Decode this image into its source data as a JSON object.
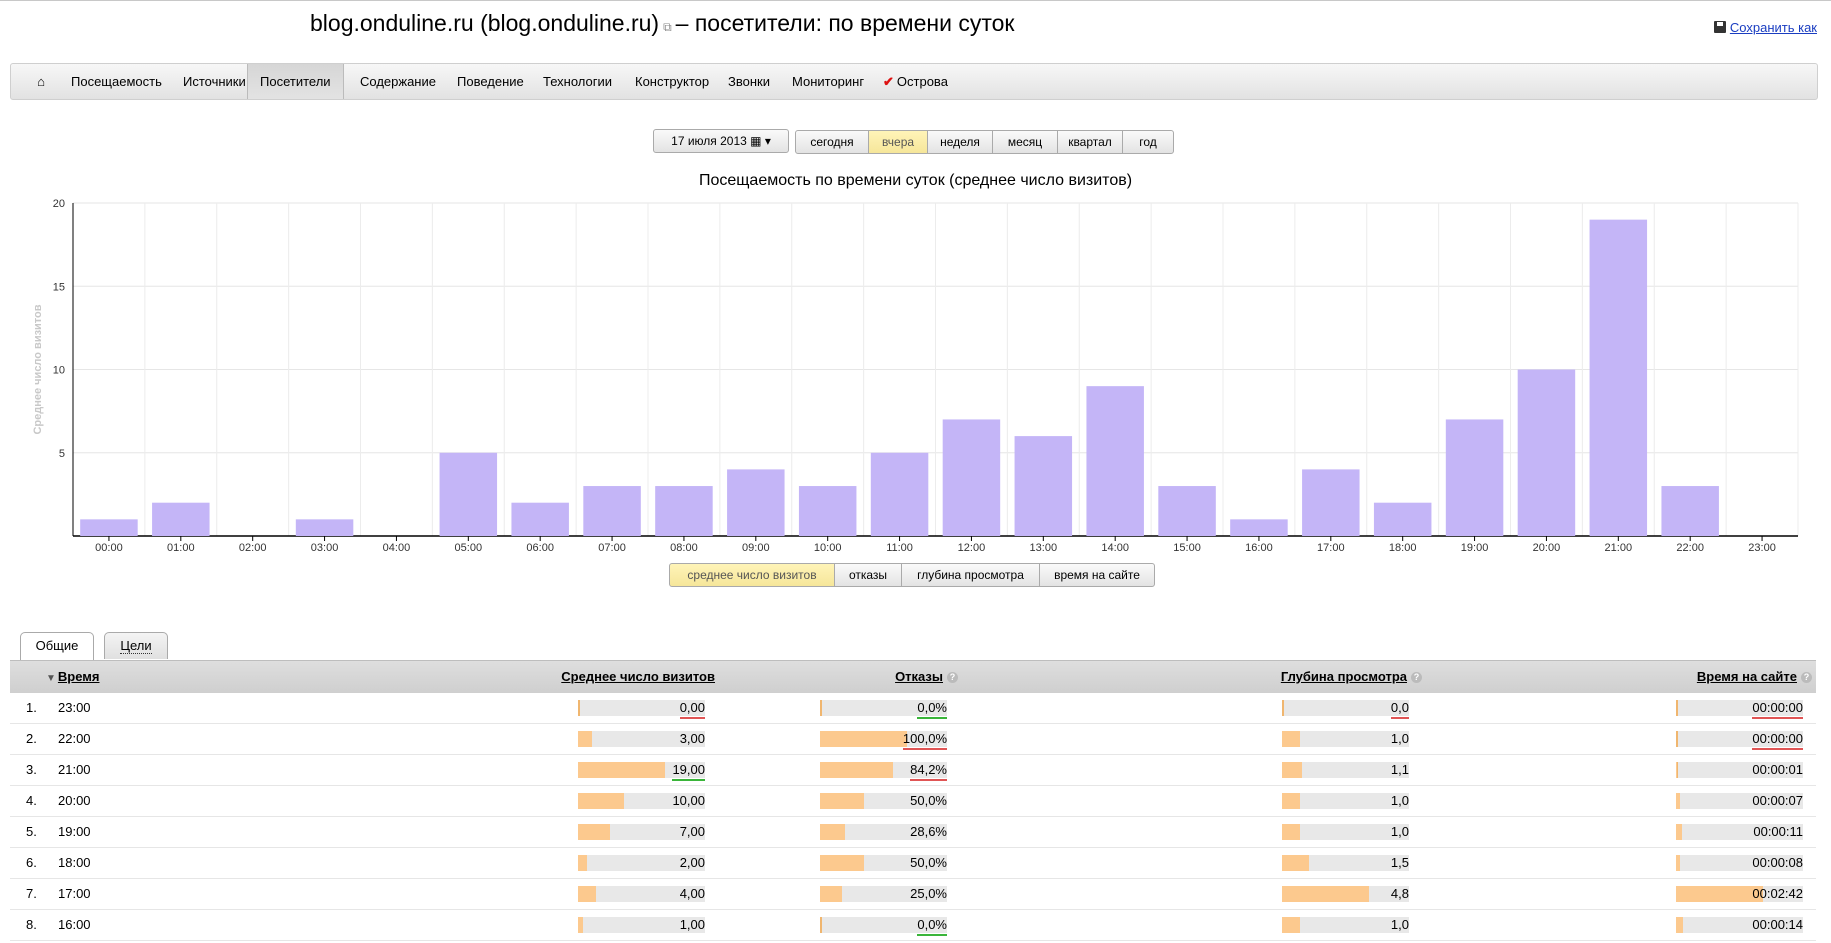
{
  "header": {
    "title_site": "blog.onduline.ru (blog.onduline.ru)",
    "title_rest": "– посетители: по времени суток",
    "save_label": "Сохранить как"
  },
  "menu": {
    "items": [
      {
        "label": "Посещаемость"
      },
      {
        "label": "Источники"
      },
      {
        "label": "Посетители",
        "active": true
      },
      {
        "label": "Содержание"
      },
      {
        "label": "Поведение"
      },
      {
        "label": "Технологии"
      },
      {
        "label": "Конструктор"
      },
      {
        "label": "Звонки"
      },
      {
        "label": "Мониторинг"
      },
      {
        "label": "Острова"
      }
    ]
  },
  "period": {
    "date": "17 июля 2013",
    "options": [
      "сегодня",
      "вчера",
      "неделя",
      "месяц",
      "квартал",
      "год"
    ],
    "selected": "вчера"
  },
  "metric_switch": {
    "options": [
      "среднее число визитов",
      "отказы",
      "глубина просмотра",
      "время на сайте"
    ],
    "selected": "среднее число визитов"
  },
  "chart_data": {
    "type": "bar",
    "title": "Посещаемость по времени суток (среднее число визитов)",
    "ylabel": "Среднее число визитов",
    "xlabel": "",
    "categories": [
      "00:00",
      "01:00",
      "02:00",
      "03:00",
      "04:00",
      "05:00",
      "06:00",
      "07:00",
      "08:00",
      "09:00",
      "10:00",
      "11:00",
      "12:00",
      "13:00",
      "14:00",
      "15:00",
      "16:00",
      "17:00",
      "18:00",
      "19:00",
      "20:00",
      "21:00",
      "22:00",
      "23:00"
    ],
    "values": [
      1,
      2,
      0,
      1,
      0,
      5,
      2,
      3,
      3,
      4,
      3,
      5,
      7,
      6,
      9,
      3,
      1,
      4,
      2,
      7,
      10,
      19,
      3,
      0
    ],
    "ylim": [
      0,
      20
    ],
    "yticks": [
      5,
      10,
      15,
      20
    ],
    "bar_color": "#c4b5f7",
    "grid": true
  },
  "tabs": [
    {
      "label": "Общие",
      "active": true
    },
    {
      "label": "Цели"
    }
  ],
  "table": {
    "headers": {
      "time": "Время",
      "visits": "Среднее число визитов",
      "bounce": "Отказы",
      "depth": "Глубина просмотра",
      "duration": "Время на сайте"
    },
    "rows": [
      {
        "n": "1.",
        "time": "23:00",
        "visits": "0,00",
        "v_frac": 0.0,
        "bounce": "0,0%",
        "b_frac": 0.0,
        "depth": "0,0",
        "d_frac": 0.0,
        "duration": "00:00:00",
        "t_frac": 0.0
      },
      {
        "n": "2.",
        "time": "22:00",
        "visits": "3,00",
        "v_frac": 0.158,
        "bounce": "100,0%",
        "b_frac": 1.0,
        "depth": "1,0",
        "d_frac": 0.208,
        "duration": "00:00:00",
        "t_frac": 0.0
      },
      {
        "n": "3.",
        "time": "21:00",
        "visits": "19,00",
        "v_frac": 1.0,
        "bounce": "84,2%",
        "b_frac": 0.842,
        "depth": "1,1",
        "d_frac": 0.229,
        "duration": "00:00:01",
        "t_frac": 0.006
      },
      {
        "n": "4.",
        "time": "20:00",
        "visits": "10,00",
        "v_frac": 0.526,
        "bounce": "50,0%",
        "b_frac": 0.5,
        "depth": "1,0",
        "d_frac": 0.208,
        "duration": "00:00:07",
        "t_frac": 0.043
      },
      {
        "n": "5.",
        "time": "19:00",
        "visits": "7,00",
        "v_frac": 0.368,
        "bounce": "28,6%",
        "b_frac": 0.286,
        "depth": "1,0",
        "d_frac": 0.208,
        "duration": "00:00:11",
        "t_frac": 0.068
      },
      {
        "n": "6.",
        "time": "18:00",
        "visits": "2,00",
        "v_frac": 0.105,
        "bounce": "50,0%",
        "b_frac": 0.5,
        "depth": "1,5",
        "d_frac": 0.313,
        "duration": "00:00:08",
        "t_frac": 0.049
      },
      {
        "n": "7.",
        "time": "17:00",
        "visits": "4,00",
        "v_frac": 0.211,
        "bounce": "25,0%",
        "b_frac": 0.25,
        "depth": "4,8",
        "d_frac": 1.0,
        "duration": "00:02:42",
        "t_frac": 1.0
      },
      {
        "n": "8.",
        "time": "16:00",
        "visits": "1,00",
        "v_frac": 0.053,
        "bounce": "0,0%",
        "b_frac": 0.0,
        "depth": "1,0",
        "d_frac": 0.208,
        "duration": "00:00:14",
        "t_frac": 0.086
      }
    ]
  }
}
